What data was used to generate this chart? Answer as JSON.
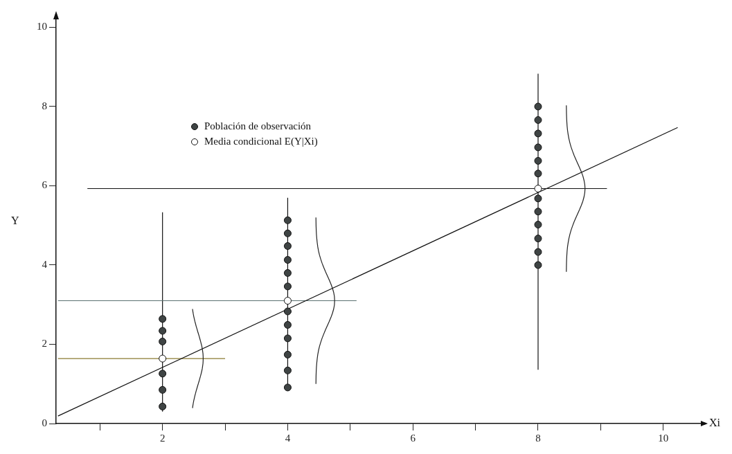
{
  "chart_data": {
    "type": "scatter",
    "xlabel": "Xi",
    "ylabel": "Y",
    "xlim": [
      0.3,
      10.6
    ],
    "ylim": [
      0,
      10.2
    ],
    "xticks": [
      {
        "value": 1,
        "label": null
      },
      2,
      {
        "value": 3,
        "label": null
      },
      4,
      {
        "value": 5,
        "label": null
      },
      6,
      {
        "value": 7,
        "label": null
      },
      8,
      {
        "value": 9,
        "label": null
      },
      10
    ],
    "yticks": [
      0,
      2,
      4,
      6,
      8,
      10
    ],
    "grid": false,
    "legend": "top left",
    "marker": "circle",
    "series": [
      {
        "type": "line",
        "marker": "none",
        "color": "#111111",
        "x": [
          0.33,
          10.23
        ],
        "values": [
          0.19,
          7.47
        ]
      },
      {
        "type": "line",
        "marker": "none",
        "color": "#8a7a30",
        "x": [
          0.33,
          3.0
        ],
        "values": [
          1.64,
          1.64
        ]
      },
      {
        "type": "line",
        "marker": "none",
        "color": "#5a7070",
        "x": [
          0.33,
          5.1
        ],
        "values": [
          3.1,
          3.1
        ]
      },
      {
        "type": "line",
        "marker": "none",
        "color": "#111111",
        "x": [
          0.8,
          9.1
        ],
        "values": [
          5.93,
          5.93
        ]
      },
      {
        "type": "line",
        "marker": "none",
        "color": "#111111",
        "x": [
          2,
          2
        ],
        "values": [
          0.3,
          5.33
        ]
      },
      {
        "type": "line",
        "marker": "none",
        "color": "#111111",
        "x": [
          4,
          4
        ],
        "values": [
          0.9,
          5.7
        ]
      },
      {
        "type": "line",
        "marker": "none",
        "color": "#111111",
        "x": [
          8,
          8
        ],
        "values": [
          1.36,
          8.83
        ]
      },
      {
        "name": "Población de observación",
        "color": "#3f4444",
        "x": [
          2,
          2,
          2,
          2,
          2,
          2,
          4,
          4,
          4,
          4,
          4,
          4,
          4,
          4,
          4,
          4,
          4,
          4,
          8,
          8,
          8,
          8,
          8,
          8,
          8,
          8,
          8,
          8,
          8,
          8
        ],
        "values": [
          2.64,
          2.34,
          2.07,
          1.26,
          0.85,
          0.43,
          5.13,
          4.8,
          4.48,
          4.13,
          3.8,
          3.46,
          2.83,
          2.49,
          2.15,
          1.74,
          1.34,
          0.91,
          8.0,
          7.66,
          7.32,
          6.97,
          6.63,
          6.31,
          5.68,
          5.35,
          5.02,
          4.67,
          4.33,
          4.0
        ]
      },
      {
        "name": "Media condicional E(Y|Xi)",
        "color": "#ffffff",
        "x": [
          2,
          4,
          8
        ],
        "values": [
          1.64,
          3.1,
          5.93
        ]
      }
    ]
  }
}
